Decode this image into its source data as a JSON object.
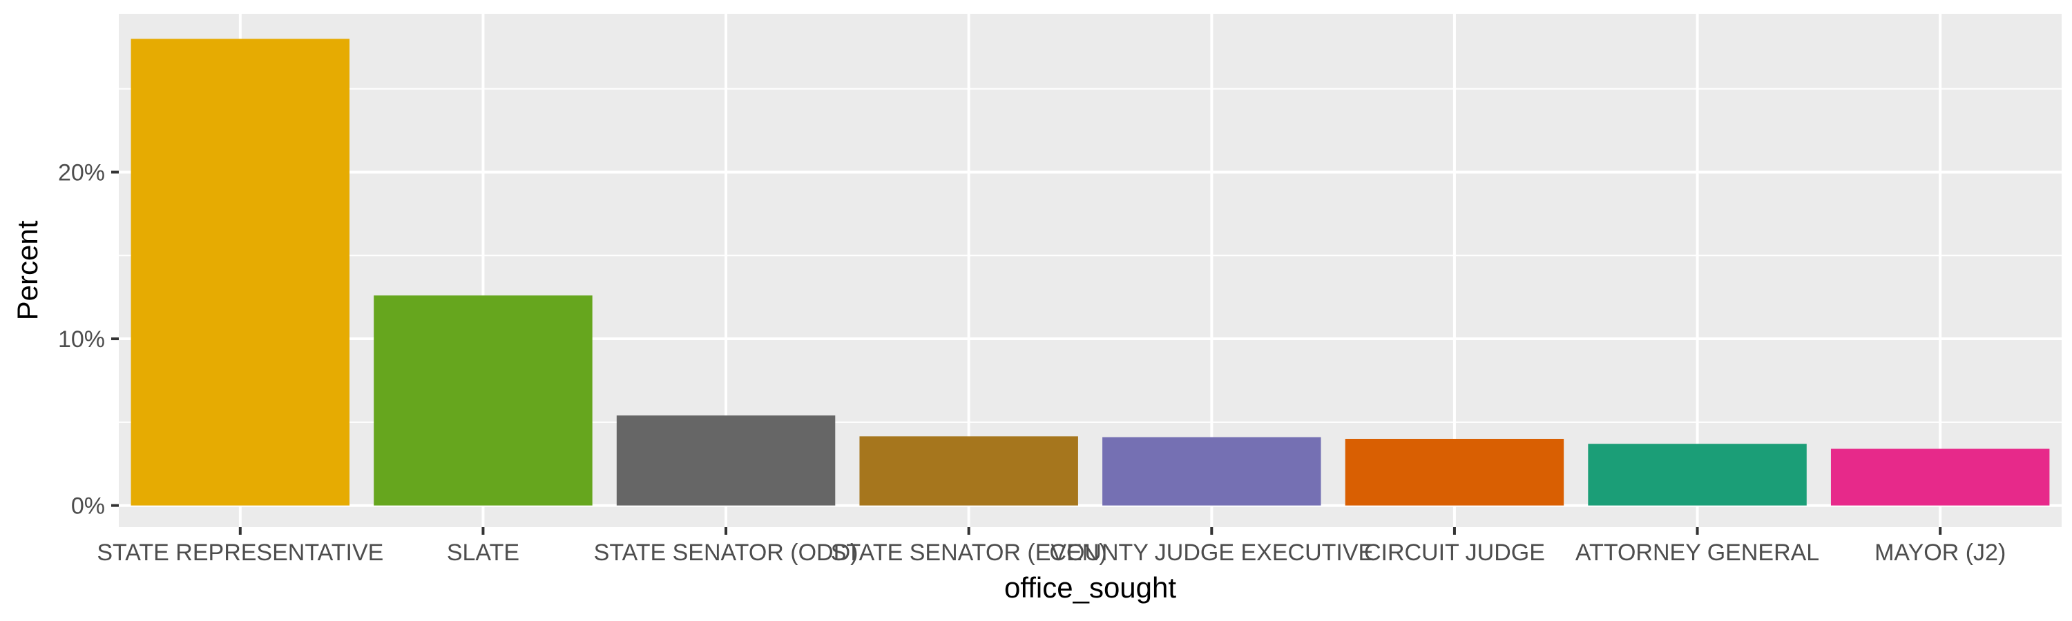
{
  "chart_data": {
    "type": "bar",
    "title": "",
    "xlabel": "office_sought",
    "ylabel": "Percent",
    "categories": [
      "STATE REPRESENTATIVE",
      "SLATE",
      "STATE SENATOR (ODD)",
      "STATE SENATOR (EVEN)",
      "COUNTY JUDGE EXECUTIVE",
      "CIRCUIT JUDGE",
      "ATTORNEY GENERAL",
      "MAYOR (J2)"
    ],
    "values": [
      28.0,
      12.6,
      5.4,
      4.15,
      4.1,
      4.0,
      3.7,
      3.4
    ],
    "colors": [
      "#E6AB02",
      "#66A61E",
      "#666666",
      "#A6761D",
      "#7570B3",
      "#D95F02",
      "#1B9E77",
      "#E7298A"
    ],
    "ylim": [
      -1.3,
      29.5
    ],
    "yticks": [
      0,
      10,
      20
    ],
    "ytick_labels": [
      "0%",
      "10%",
      "20%"
    ],
    "grid": true,
    "legend": "none"
  }
}
